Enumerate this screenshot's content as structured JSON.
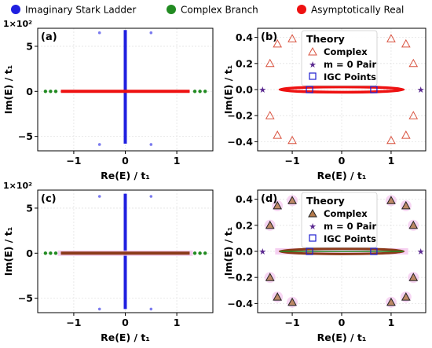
{
  "top_legend": [
    {
      "label": "Imaginary Stark Ladder",
      "color": "#1f1fe0"
    },
    {
      "label": "Complex Branch",
      "color": "#228b22"
    },
    {
      "label": "Asymptotically Real",
      "color": "#ee1111"
    }
  ],
  "colors": {
    "ladder": "#1f1fe0",
    "ladder_points": "#7b7bef",
    "complex_branch": "#228b22",
    "asym_real": "#ee1111",
    "asym_real_dark": "#8b3a1a",
    "pink_band": "#f4c4ee",
    "grid": "#e3e3e3",
    "theory_tri_b": "#d9523f",
    "theory_tri_d": "#b37a4c",
    "theory_star": "#5b2a90",
    "theory_square": "#1f1fd0"
  },
  "chart_data": [
    {
      "panel": "(a)",
      "type": "scatter",
      "xlabel": "Re(E) / t₁",
      "ylabel": "Im(E) / t₁",
      "xlim": [
        -1.7,
        1.7
      ],
      "ylim": [
        -6.6,
        7.0
      ],
      "xticks": [
        -1,
        0,
        1
      ],
      "yticks": [
        -5,
        0,
        5
      ],
      "ytick_labels": [
        "−5",
        "0",
        "5"
      ],
      "offset_text": "1×10²",
      "grid": true,
      "series": [
        {
          "name": "Imaginary Stark Ladder",
          "kind": "vline",
          "x": 0,
          "y": [
            -5.8,
            6.8
          ]
        },
        {
          "name": "Imaginary Stark Ladder",
          "kind": "points",
          "points": [
            [
              -0.5,
              6.5
            ],
            [
              0.5,
              6.5
            ],
            [
              -0.5,
              -5.9
            ],
            [
              0.5,
              -5.9
            ]
          ]
        },
        {
          "name": "Complex Branch",
          "kind": "points",
          "points": [
            [
              -1.55,
              0
            ],
            [
              -1.45,
              0
            ],
            [
              -1.35,
              0
            ],
            [
              1.35,
              0
            ],
            [
              1.45,
              0
            ],
            [
              1.55,
              0
            ]
          ]
        },
        {
          "name": "Asymptotically Real",
          "kind": "hline",
          "y": 0,
          "x": [
            -1.25,
            1.25
          ]
        }
      ]
    },
    {
      "panel": "(b)",
      "type": "scatter",
      "xlabel": "Re(E) / t₁",
      "ylabel": "Im(E) / t₁",
      "xlim": [
        -1.7,
        1.7
      ],
      "ylim": [
        -0.47,
        0.47
      ],
      "xticks": [
        -1,
        0,
        1
      ],
      "yticks": [
        -0.4,
        -0.2,
        0.0,
        0.2,
        0.4
      ],
      "ytick_labels": [
        "−0.4",
        "−0.2",
        "0.0",
        "0.2",
        "0.4"
      ],
      "grid": true,
      "legend": {
        "title": "Theory",
        "entries": [
          "Complex",
          "m = 0 Pair",
          "IGC Points"
        ],
        "position": "upper center"
      },
      "series": [
        {
          "name": "Asymptotically Real",
          "kind": "ellipse",
          "cx": 0,
          "cy": 0,
          "rx": 1.25,
          "ry": 0.02
        },
        {
          "name": "Complex",
          "kind": "triangles",
          "points": [
            [
              -1.0,
              0.39
            ],
            [
              -1.3,
              0.35
            ],
            [
              -1.45,
              0.2
            ],
            [
              -1.45,
              -0.2
            ],
            [
              -1.3,
              -0.35
            ],
            [
              -1.0,
              -0.39
            ],
            [
              1.0,
              0.39
            ],
            [
              1.3,
              0.35
            ],
            [
              1.45,
              0.2
            ],
            [
              1.45,
              -0.2
            ],
            [
              1.3,
              -0.35
            ],
            [
              1.0,
              -0.39
            ]
          ]
        },
        {
          "name": "m = 0 Pair",
          "kind": "stars",
          "points": [
            [
              -1.6,
              0
            ],
            [
              1.6,
              0
            ]
          ]
        },
        {
          "name": "IGC Points",
          "kind": "squares",
          "points": [
            [
              -0.65,
              0
            ],
            [
              0.65,
              0
            ]
          ]
        }
      ]
    },
    {
      "panel": "(c)",
      "type": "scatter",
      "xlabel": "Re(E) / t₁",
      "ylabel": "Im(E) / t₁",
      "xlim": [
        -1.7,
        1.7
      ],
      "ylim": [
        -6.6,
        7.0
      ],
      "xticks": [
        -1,
        0,
        1
      ],
      "yticks": [
        -5,
        0,
        5
      ],
      "ytick_labels": [
        "−5",
        "0",
        "5"
      ],
      "offset_text": "1×10²",
      "grid": true,
      "series": [
        {
          "name": "Imaginary Stark Ladder",
          "kind": "vline",
          "x": 0,
          "y": [
            -6.2,
            6.6
          ]
        },
        {
          "name": "Imaginary Stark Ladder",
          "kind": "points",
          "points": [
            [
              -0.5,
              6.3
            ],
            [
              0.5,
              6.3
            ],
            [
              -0.5,
              -6.2
            ],
            [
              0.5,
              -6.2
            ]
          ]
        },
        {
          "name": "Complex Branch",
          "kind": "points",
          "points": [
            [
              -1.55,
              0
            ],
            [
              -1.45,
              0
            ],
            [
              -1.35,
              0
            ],
            [
              1.35,
              0
            ],
            [
              1.45,
              0
            ],
            [
              1.55,
              0
            ]
          ]
        },
        {
          "name": "Asymptotically Real",
          "kind": "hline",
          "y": 0,
          "x": [
            -1.25,
            1.25
          ]
        }
      ]
    },
    {
      "panel": "(d)",
      "type": "scatter",
      "xlabel": "Re(E) / t₁",
      "ylabel": "Im(E) / t₁",
      "xlim": [
        -1.7,
        1.7
      ],
      "ylim": [
        -0.47,
        0.47
      ],
      "xticks": [
        -1,
        0,
        1
      ],
      "yticks": [
        -0.4,
        -0.2,
        0.0,
        0.2,
        0.4
      ],
      "ytick_labels": [
        "−0.4",
        "−0.2",
        "0.0",
        "0.2",
        "0.4"
      ],
      "grid": true,
      "legend": {
        "title": "Theory",
        "entries": [
          "Complex",
          "m = 0 Pair",
          "IGC Points"
        ],
        "position": "upper center"
      },
      "series": [
        {
          "name": "Asymptotically Real",
          "kind": "ellipse",
          "cx": 0,
          "cy": 0,
          "rx": 1.25,
          "ry": 0.02
        },
        {
          "name": "Complex",
          "kind": "triangles",
          "points": [
            [
              -1.0,
              0.39
            ],
            [
              -1.3,
              0.35
            ],
            [
              -1.45,
              0.2
            ],
            [
              -1.45,
              -0.2
            ],
            [
              -1.3,
              -0.35
            ],
            [
              -1.0,
              -0.39
            ],
            [
              1.0,
              0.39
            ],
            [
              1.3,
              0.35
            ],
            [
              1.45,
              0.2
            ],
            [
              1.45,
              -0.2
            ],
            [
              1.3,
              -0.35
            ],
            [
              1.0,
              -0.39
            ]
          ]
        },
        {
          "name": "m = 0 Pair",
          "kind": "stars",
          "points": [
            [
              -1.6,
              0
            ],
            [
              1.6,
              0
            ]
          ]
        },
        {
          "name": "IGC Points",
          "kind": "squares",
          "points": [
            [
              -0.65,
              0
            ],
            [
              0.65,
              0
            ]
          ]
        }
      ]
    }
  ]
}
